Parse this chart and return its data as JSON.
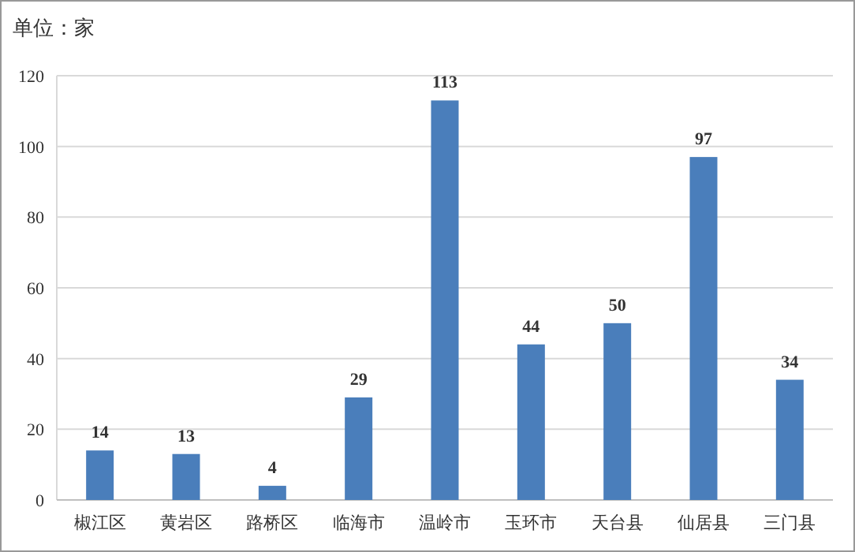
{
  "chart_data": {
    "type": "bar",
    "title": "单位：家",
    "categories": [
      "椒江区",
      "黄岩区",
      "路桥区",
      "临海市",
      "温岭市",
      "玉环市",
      "天台县",
      "仙居县",
      "三门县"
    ],
    "values": [
      14,
      13,
      4,
      29,
      113,
      44,
      50,
      97,
      34
    ],
    "color": "#4a7ebb",
    "ylim": [
      0,
      120
    ],
    "yticks": [
      0,
      20,
      40,
      60,
      80,
      100,
      120
    ],
    "grid": "y",
    "data_labels": true
  }
}
